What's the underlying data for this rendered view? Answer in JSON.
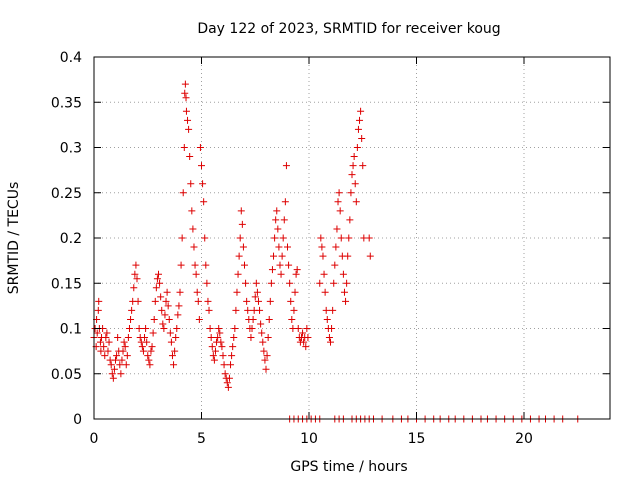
{
  "chart_data": {
    "type": "scatter",
    "title": "Day 122 of 2023, SRMTID for receiver koug",
    "xlabel": "GPS time / hours",
    "ylabel": "SRMTID / TECUs",
    "xlim": [
      0,
      24
    ],
    "ylim": [
      0,
      0.4
    ],
    "grid": true,
    "marker": "+",
    "color": "#dd0000",
    "xticks": [
      0,
      5,
      10,
      15,
      20
    ],
    "xtick_labels": [
      "0",
      "5",
      "10",
      "15",
      "20"
    ],
    "yticks": [
      0,
      0.05,
      0.1,
      0.15,
      0.2,
      0.25,
      0.3,
      0.35,
      0.4
    ],
    "ytick_labels": [
      "0",
      "0.05",
      "0.1",
      "0.15",
      "0.2",
      "0.25",
      "0.3",
      "0.35",
      "0.4"
    ],
    "series": [
      {
        "name": "SRMTID",
        "points": [
          [
            0.0,
            0.09
          ],
          [
            0.05,
            0.1
          ],
          [
            0.1,
            0.08
          ],
          [
            0.12,
            0.11
          ],
          [
            0.15,
            0.095
          ],
          [
            0.2,
            0.12
          ],
          [
            0.22,
            0.13
          ],
          [
            0.25,
            0.1
          ],
          [
            0.3,
            0.085
          ],
          [
            0.32,
            0.075
          ],
          [
            0.35,
            0.09
          ],
          [
            0.4,
            0.1
          ],
          [
            0.45,
            0.08
          ],
          [
            0.5,
            0.07
          ],
          [
            0.55,
            0.09
          ],
          [
            0.6,
            0.095
          ],
          [
            0.65,
            0.075
          ],
          [
            0.7,
            0.085
          ],
          [
            0.75,
            0.065
          ],
          [
            0.8,
            0.06
          ],
          [
            0.85,
            0.05
          ],
          [
            0.9,
            0.045
          ],
          [
            0.95,
            0.055
          ],
          [
            1.0,
            0.065
          ],
          [
            1.05,
            0.07
          ],
          [
            1.1,
            0.09
          ],
          [
            1.15,
            0.075
          ],
          [
            1.2,
            0.06
          ],
          [
            1.25,
            0.05
          ],
          [
            1.3,
            0.065
          ],
          [
            1.35,
            0.075
          ],
          [
            1.4,
            0.085
          ],
          [
            1.45,
            0.08
          ],
          [
            1.5,
            0.06
          ],
          [
            1.55,
            0.07
          ],
          [
            1.6,
            0.09
          ],
          [
            1.65,
            0.1
          ],
          [
            1.7,
            0.11
          ],
          [
            1.75,
            0.12
          ],
          [
            1.8,
            0.13
          ],
          [
            1.85,
            0.145
          ],
          [
            1.9,
            0.16
          ],
          [
            1.95,
            0.17
          ],
          [
            2.0,
            0.155
          ],
          [
            2.05,
            0.13
          ],
          [
            2.1,
            0.1
          ],
          [
            2.15,
            0.09
          ],
          [
            2.2,
            0.085
          ],
          [
            2.25,
            0.08
          ],
          [
            2.3,
            0.075
          ],
          [
            2.35,
            0.09
          ],
          [
            2.4,
            0.1
          ],
          [
            2.45,
            0.085
          ],
          [
            2.5,
            0.07
          ],
          [
            2.55,
            0.065
          ],
          [
            2.6,
            0.06
          ],
          [
            2.65,
            0.075
          ],
          [
            2.7,
            0.08
          ],
          [
            2.75,
            0.095
          ],
          [
            2.8,
            0.11
          ],
          [
            2.85,
            0.13
          ],
          [
            2.9,
            0.145
          ],
          [
            2.95,
            0.155
          ],
          [
            3.0,
            0.16
          ],
          [
            3.05,
            0.15
          ],
          [
            3.1,
            0.135
          ],
          [
            3.15,
            0.12
          ],
          [
            3.2,
            0.105
          ],
          [
            3.25,
            0.1
          ],
          [
            3.3,
            0.115
          ],
          [
            3.35,
            0.13
          ],
          [
            3.4,
            0.14
          ],
          [
            3.45,
            0.125
          ],
          [
            3.5,
            0.11
          ],
          [
            3.55,
            0.095
          ],
          [
            3.6,
            0.085
          ],
          [
            3.65,
            0.07
          ],
          [
            3.7,
            0.06
          ],
          [
            3.75,
            0.075
          ],
          [
            3.8,
            0.09
          ],
          [
            3.85,
            0.1
          ],
          [
            3.9,
            0.115
          ],
          [
            3.95,
            0.125
          ],
          [
            4.0,
            0.14
          ],
          [
            4.05,
            0.17
          ],
          [
            4.1,
            0.2
          ],
          [
            4.15,
            0.25
          ],
          [
            4.2,
            0.3
          ],
          [
            4.22,
            0.36
          ],
          [
            4.25,
            0.37
          ],
          [
            4.28,
            0.355
          ],
          [
            4.3,
            0.34
          ],
          [
            4.35,
            0.33
          ],
          [
            4.4,
            0.32
          ],
          [
            4.45,
            0.29
          ],
          [
            4.5,
            0.26
          ],
          [
            4.55,
            0.23
          ],
          [
            4.6,
            0.21
          ],
          [
            4.65,
            0.19
          ],
          [
            4.7,
            0.17
          ],
          [
            4.75,
            0.16
          ],
          [
            4.8,
            0.14
          ],
          [
            4.85,
            0.13
          ],
          [
            4.9,
            0.11
          ],
          [
            4.95,
            0.3
          ],
          [
            5.0,
            0.28
          ],
          [
            5.05,
            0.26
          ],
          [
            5.1,
            0.24
          ],
          [
            5.15,
            0.2
          ],
          [
            5.2,
            0.17
          ],
          [
            5.25,
            0.15
          ],
          [
            5.3,
            0.13
          ],
          [
            5.35,
            0.12
          ],
          [
            5.4,
            0.1
          ],
          [
            5.45,
            0.09
          ],
          [
            5.5,
            0.08
          ],
          [
            5.55,
            0.07
          ],
          [
            5.6,
            0.065
          ],
          [
            5.65,
            0.075
          ],
          [
            5.7,
            0.085
          ],
          [
            5.75,
            0.09
          ],
          [
            5.8,
            0.1
          ],
          [
            5.85,
            0.095
          ],
          [
            5.9,
            0.085
          ],
          [
            5.95,
            0.08
          ],
          [
            6.0,
            0.07
          ],
          [
            6.05,
            0.06
          ],
          [
            6.1,
            0.05
          ],
          [
            6.15,
            0.045
          ],
          [
            6.2,
            0.04
          ],
          [
            6.25,
            0.035
          ],
          [
            6.3,
            0.045
          ],
          [
            6.35,
            0.06
          ],
          [
            6.4,
            0.07
          ],
          [
            6.45,
            0.08
          ],
          [
            6.5,
            0.09
          ],
          [
            6.55,
            0.1
          ],
          [
            6.6,
            0.12
          ],
          [
            6.65,
            0.14
          ],
          [
            6.7,
            0.16
          ],
          [
            6.75,
            0.18
          ],
          [
            6.8,
            0.2
          ],
          [
            6.85,
            0.23
          ],
          [
            6.9,
            0.215
          ],
          [
            6.95,
            0.19
          ],
          [
            7.0,
            0.17
          ],
          [
            7.05,
            0.15
          ],
          [
            7.1,
            0.13
          ],
          [
            7.15,
            0.12
          ],
          [
            7.2,
            0.11
          ],
          [
            7.25,
            0.1
          ],
          [
            7.3,
            0.09
          ],
          [
            7.35,
            0.1
          ],
          [
            7.4,
            0.11
          ],
          [
            7.45,
            0.12
          ],
          [
            7.5,
            0.135
          ],
          [
            7.55,
            0.15
          ],
          [
            7.6,
            0.14
          ],
          [
            7.65,
            0.13
          ],
          [
            7.7,
            0.12
          ],
          [
            7.75,
            0.105
          ],
          [
            7.8,
            0.095
          ],
          [
            7.85,
            0.085
          ],
          [
            7.9,
            0.075
          ],
          [
            7.95,
            0.065
          ],
          [
            8.0,
            0.055
          ],
          [
            8.05,
            0.07
          ],
          [
            8.1,
            0.09
          ],
          [
            8.15,
            0.11
          ],
          [
            8.2,
            0.13
          ],
          [
            8.25,
            0.15
          ],
          [
            8.3,
            0.165
          ],
          [
            8.35,
            0.18
          ],
          [
            8.4,
            0.2
          ],
          [
            8.45,
            0.22
          ],
          [
            8.5,
            0.23
          ],
          [
            8.55,
            0.21
          ],
          [
            8.6,
            0.19
          ],
          [
            8.65,
            0.17
          ],
          [
            8.7,
            0.16
          ],
          [
            8.75,
            0.18
          ],
          [
            8.8,
            0.2
          ],
          [
            8.85,
            0.22
          ],
          [
            8.9,
            0.24
          ],
          [
            8.95,
            0.28
          ],
          [
            9.0,
            0.19
          ],
          [
            9.05,
            0.17
          ],
          [
            9.1,
            0.15
          ],
          [
            9.15,
            0.13
          ],
          [
            9.2,
            0.11
          ],
          [
            9.25,
            0.1
          ],
          [
            9.3,
            0.12
          ],
          [
            9.35,
            0.14
          ],
          [
            9.4,
            0.16
          ],
          [
            9.45,
            0.165
          ],
          [
            9.5,
            0.1
          ],
          [
            9.55,
            0.09
          ],
          [
            9.6,
            0.085
          ],
          [
            9.65,
            0.09
          ],
          [
            9.7,
            0.095
          ],
          [
            9.75,
            0.085
          ],
          [
            9.8,
            0.09
          ],
          [
            9.85,
            0.08
          ],
          [
            9.9,
            0.1
          ],
          [
            9.95,
            0.09
          ],
          [
            10.5,
            0.15
          ],
          [
            10.55,
            0.2
          ],
          [
            10.6,
            0.19
          ],
          [
            10.65,
            0.18
          ],
          [
            10.7,
            0.16
          ],
          [
            10.75,
            0.14
          ],
          [
            10.8,
            0.12
          ],
          [
            10.85,
            0.11
          ],
          [
            10.9,
            0.1
          ],
          [
            10.95,
            0.09
          ],
          [
            11.0,
            0.085
          ],
          [
            11.05,
            0.1
          ],
          [
            11.1,
            0.12
          ],
          [
            11.15,
            0.15
          ],
          [
            11.2,
            0.17
          ],
          [
            11.25,
            0.19
          ],
          [
            11.3,
            0.21
          ],
          [
            11.35,
            0.24
          ],
          [
            11.4,
            0.25
          ],
          [
            11.45,
            0.23
          ],
          [
            11.5,
            0.2
          ],
          [
            11.55,
            0.18
          ],
          [
            11.6,
            0.16
          ],
          [
            11.65,
            0.14
          ],
          [
            11.7,
            0.13
          ],
          [
            11.75,
            0.15
          ],
          [
            11.8,
            0.18
          ],
          [
            11.85,
            0.2
          ],
          [
            11.9,
            0.22
          ],
          [
            11.95,
            0.25
          ],
          [
            12.0,
            0.27
          ],
          [
            12.05,
            0.28
          ],
          [
            12.1,
            0.29
          ],
          [
            12.15,
            0.26
          ],
          [
            12.2,
            0.24
          ],
          [
            12.25,
            0.3
          ],
          [
            12.3,
            0.32
          ],
          [
            12.35,
            0.33
          ],
          [
            12.4,
            0.34
          ],
          [
            12.45,
            0.31
          ],
          [
            12.5,
            0.28
          ],
          [
            12.55,
            0.2
          ],
          [
            12.8,
            0.2
          ],
          [
            12.85,
            0.18
          ],
          [
            9.1,
            0.0
          ],
          [
            9.3,
            0.0
          ],
          [
            9.5,
            0.0
          ],
          [
            9.7,
            0.0
          ],
          [
            9.9,
            0.0
          ],
          [
            10.1,
            0.0
          ],
          [
            10.3,
            0.0
          ],
          [
            10.5,
            0.0
          ],
          [
            11.2,
            0.0
          ],
          [
            11.4,
            0.0
          ],
          [
            11.6,
            0.0
          ],
          [
            12.0,
            0.0
          ],
          [
            12.2,
            0.0
          ],
          [
            12.4,
            0.0
          ],
          [
            12.6,
            0.0
          ],
          [
            12.8,
            0.0
          ],
          [
            13.0,
            0.0
          ],
          [
            13.4,
            0.0
          ],
          [
            13.9,
            0.0
          ],
          [
            14.3,
            0.0
          ],
          [
            14.6,
            0.0
          ],
          [
            15.0,
            0.0
          ],
          [
            15.4,
            0.0
          ],
          [
            15.8,
            0.0
          ],
          [
            16.1,
            0.0
          ],
          [
            16.5,
            0.0
          ],
          [
            16.8,
            0.0
          ],
          [
            17.2,
            0.0
          ],
          [
            17.6,
            0.0
          ],
          [
            18.0,
            0.0
          ],
          [
            18.3,
            0.0
          ],
          [
            18.7,
            0.0
          ],
          [
            19.1,
            0.0
          ],
          [
            19.5,
            0.0
          ],
          [
            19.9,
            0.0
          ],
          [
            20.3,
            0.0
          ],
          [
            20.7,
            0.0
          ],
          [
            21.0,
            0.0
          ],
          [
            21.4,
            0.0
          ],
          [
            21.8,
            0.0
          ],
          [
            22.5,
            0.0
          ]
        ]
      }
    ]
  }
}
